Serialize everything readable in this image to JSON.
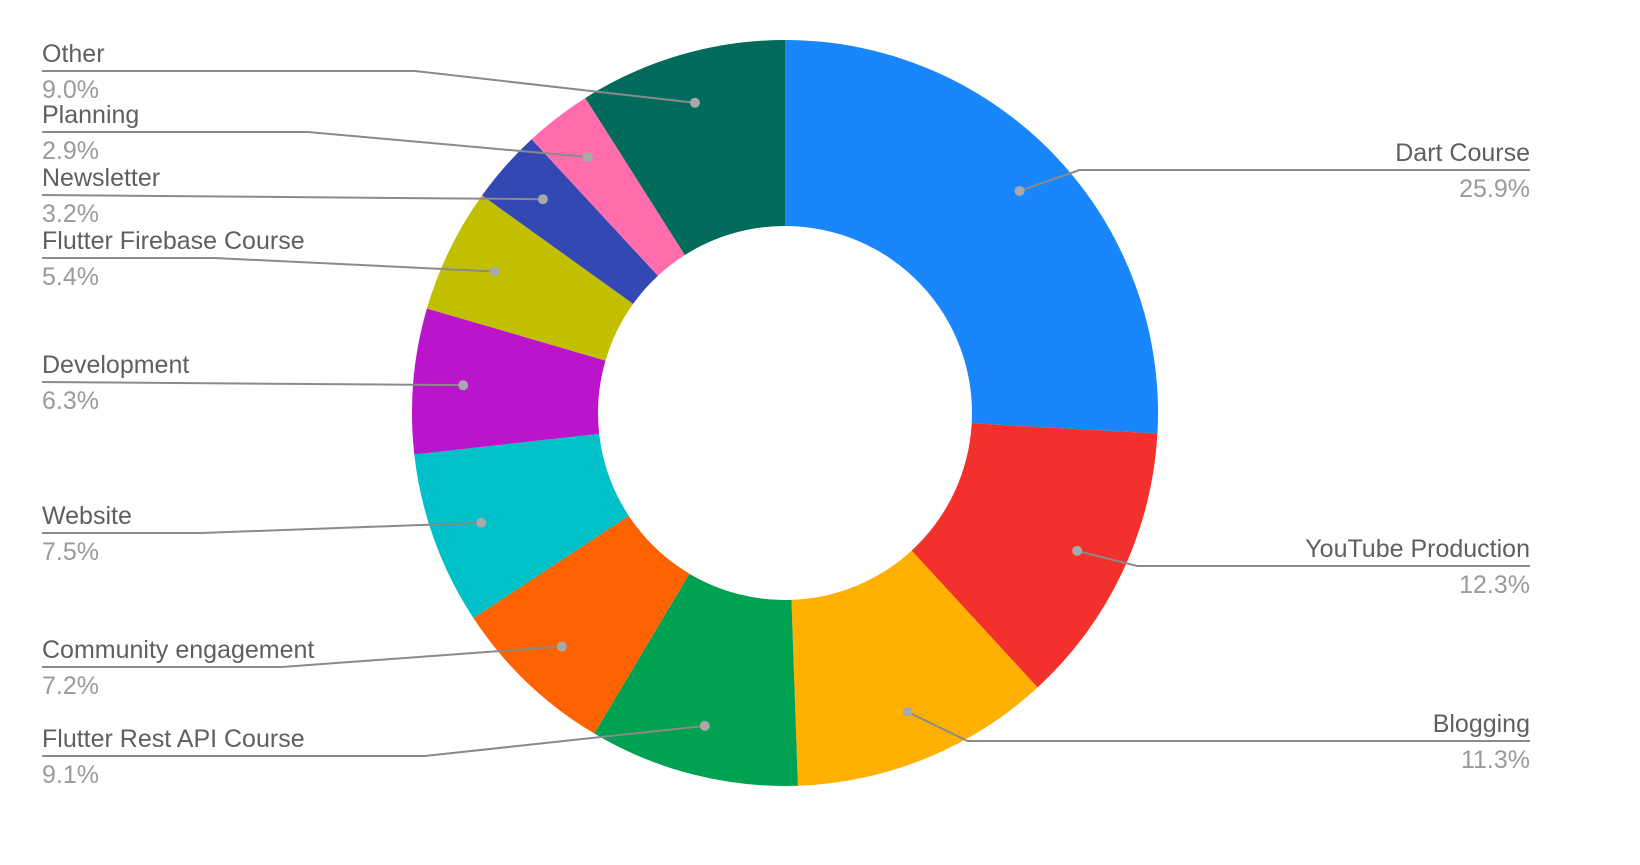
{
  "chart_data": {
    "type": "pie",
    "donut": true,
    "start": "top",
    "direction": "clockwise",
    "slices": [
      {
        "label": "Dart Course",
        "value": 25.9,
        "display": "25.9%",
        "color": "#1a86fb",
        "side": "right"
      },
      {
        "label": "YouTube Production",
        "value": 12.3,
        "display": "12.3%",
        "color": "#f2312c",
        "side": "right"
      },
      {
        "label": "Blogging",
        "value": 11.3,
        "display": "11.3%",
        "color": "#ffb000",
        "side": "right"
      },
      {
        "label": "Flutter Rest API Course",
        "value": 9.1,
        "display": "9.1%",
        "color": "#00a150",
        "side": "left"
      },
      {
        "label": "Community engagement",
        "value": 7.2,
        "display": "7.2%",
        "color": "#ff6200",
        "side": "left"
      },
      {
        "label": "Website",
        "value": 7.5,
        "display": "7.5%",
        "color": "#00c1c8",
        "side": "left"
      },
      {
        "label": "Development",
        "value": 6.3,
        "display": "6.3%",
        "color": "#bb15cc",
        "side": "left"
      },
      {
        "label": "Flutter Firebase Course",
        "value": 5.4,
        "display": "5.4%",
        "color": "#c2be00",
        "side": "left"
      },
      {
        "label": "Newsletter",
        "value": 3.2,
        "display": "3.2%",
        "color": "#3448b4",
        "side": "left"
      },
      {
        "label": "Planning",
        "value": 2.9,
        "display": "2.9%",
        "color": "#ff6dad",
        "side": "left"
      },
      {
        "label": "Other",
        "value": 9.0,
        "display": "9.0%",
        "color": "#006b5b",
        "side": "left"
      }
    ],
    "legend": "none",
    "title": ""
  }
}
